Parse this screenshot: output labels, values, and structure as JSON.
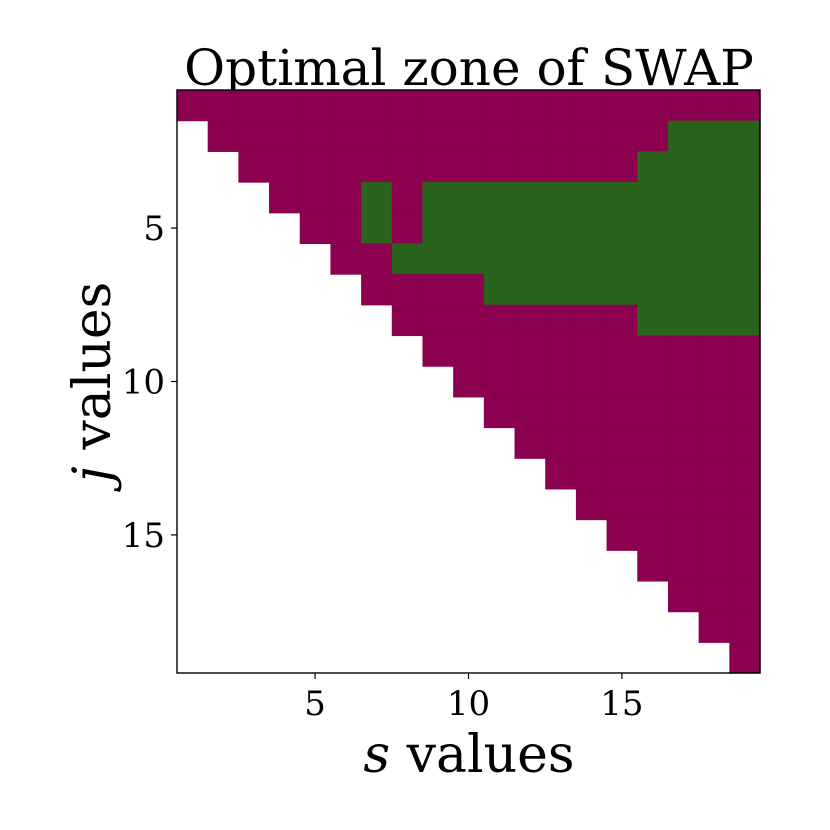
{
  "chart_data": {
    "type": "heatmap",
    "title": "Optimal zone of SWAP",
    "xlabel": {
      "var": "s",
      "rest": " values"
    },
    "ylabel": {
      "var": "j",
      "rest": " values"
    },
    "x_range": [
      1,
      19
    ],
    "y_range": [
      1,
      19
    ],
    "x_ticks": [
      5,
      10,
      15
    ],
    "y_ticks": [
      5,
      10,
      15
    ],
    "y_axis_inverted": true,
    "colors": {
      "swap_not_optimal": "#8b004f",
      "swap_optimal": "#2a641c",
      "undefined": "#ffffff"
    },
    "rule": "cell (s, j) is colored when j <= s; value 1 = SWAP optimal (green), 0 = not optimal (magenta)",
    "grid": false,
    "legend": "none",
    "optimal_cells": [
      [
        17,
        2
      ],
      [
        18,
        2
      ],
      [
        19,
        2
      ],
      [
        16,
        3
      ],
      [
        17,
        3
      ],
      [
        18,
        3
      ],
      [
        19,
        3
      ],
      [
        16,
        4
      ],
      [
        17,
        4
      ],
      [
        18,
        4
      ],
      [
        19,
        4
      ],
      [
        7,
        4
      ],
      [
        7,
        5
      ],
      [
        9,
        4
      ],
      [
        10,
        4
      ],
      [
        11,
        4
      ],
      [
        12,
        4
      ],
      [
        13,
        4
      ],
      [
        14,
        4
      ],
      [
        15,
        4
      ],
      [
        9,
        5
      ],
      [
        10,
        5
      ],
      [
        11,
        5
      ],
      [
        12,
        5
      ],
      [
        13,
        5
      ],
      [
        14,
        5
      ],
      [
        15,
        5
      ],
      [
        16,
        5
      ],
      [
        17,
        5
      ],
      [
        18,
        5
      ],
      [
        19,
        5
      ],
      [
        8,
        6
      ],
      [
        9,
        6
      ],
      [
        10,
        6
      ],
      [
        11,
        6
      ],
      [
        12,
        6
      ],
      [
        13,
        6
      ],
      [
        14,
        6
      ],
      [
        15,
        6
      ],
      [
        16,
        6
      ],
      [
        17,
        6
      ],
      [
        18,
        6
      ],
      [
        19,
        6
      ],
      [
        11,
        7
      ],
      [
        12,
        7
      ],
      [
        13,
        7
      ],
      [
        14,
        7
      ],
      [
        15,
        7
      ],
      [
        16,
        7
      ],
      [
        17,
        7
      ],
      [
        18,
        7
      ],
      [
        19,
        7
      ],
      [
        16,
        8
      ],
      [
        17,
        8
      ],
      [
        18,
        8
      ],
      [
        19,
        8
      ]
    ]
  }
}
